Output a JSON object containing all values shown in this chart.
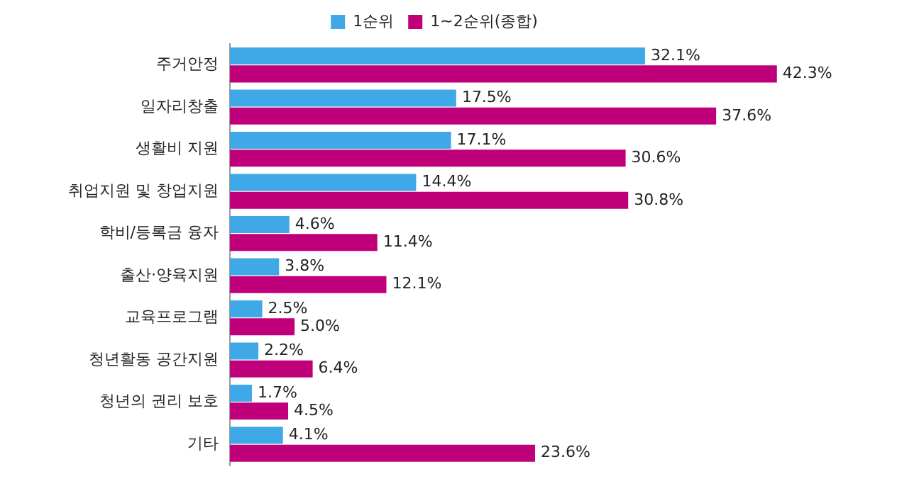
{
  "chart_data": {
    "type": "bar",
    "orientation": "horizontal",
    "categories": [
      "주거안정",
      "일자리창출",
      "생활비 지원",
      "취업지원 및 창업지원",
      "학비/등록금 융자",
      "출산·양육지원",
      "교육프로그램",
      "청년활동 공간지원",
      "청년의 권리 보호",
      "기타"
    ],
    "series": [
      {
        "name": "1순위",
        "color": "#3ea9e6",
        "values": [
          32.1,
          17.5,
          17.1,
          14.4,
          4.6,
          3.8,
          2.5,
          2.2,
          1.7,
          4.1
        ],
        "value_labels": [
          "32.1%",
          "17.5%",
          "17.1%",
          "14.4%",
          "4.6%",
          "3.8%",
          "2.5%",
          "2.2%",
          "1.7%",
          "4.1%"
        ]
      },
      {
        "name": "1~2순위(종합)",
        "color": "#c0007a",
        "values": [
          42.3,
          37.6,
          30.6,
          30.8,
          11.4,
          12.1,
          5.0,
          6.4,
          4.5,
          23.6
        ],
        "value_labels": [
          "42.3%",
          "37.6%",
          "30.6%",
          "30.8%",
          "11.4%",
          "12.1%",
          "5.0%",
          "6.4%",
          "4.5%",
          "23.6%"
        ]
      }
    ],
    "legend": "top",
    "tick_labels": "y"
  }
}
